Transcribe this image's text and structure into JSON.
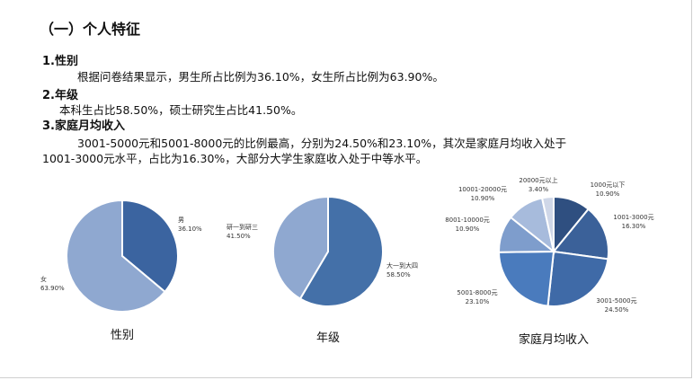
{
  "section_title": "（一）个人特征",
  "items": [
    {
      "heading": "1.性别",
      "lines": [
        "根据问卷结果显示，男生所占比例为36.10%，女生所占比例为63.90%。"
      ]
    },
    {
      "heading": "2.年级",
      "lines": [
        "本科生占比58.50%，硕士研究生占比41.50%。"
      ]
    },
    {
      "heading": "3.家庭月均收入",
      "lines": [
        "3001-5000元和5001-8000元的比例最高，分别为24.50%和23.10%，其次是家庭月均收入处于",
        "1001-3000元水平，占比为16.30%，大部分大学生家庭收入处于中等水平。"
      ]
    }
  ],
  "chart_data": [
    {
      "type": "pie",
      "title": "性别",
      "slices": [
        {
          "name": "男",
          "value": 36.1,
          "label": "36.10%",
          "color": "#3b64a0"
        },
        {
          "name": "女",
          "value": 63.9,
          "label": "63.90%",
          "color": "#8fa8d0"
        }
      ]
    },
    {
      "type": "pie",
      "title": "年级",
      "slices": [
        {
          "name": "大一到大四",
          "value": 58.5,
          "label": "58.50%",
          "color": "#4470a8"
        },
        {
          "name": "研一到研三",
          "value": 41.5,
          "label": "41.50%",
          "color": "#8fa8d0"
        }
      ]
    },
    {
      "type": "pie",
      "title": "家庭月均收入",
      "slices": [
        {
          "name": "1000元以下",
          "value": 10.9,
          "label": "10.90%",
          "color": "#2f4f80"
        },
        {
          "name": "1001-3000元",
          "value": 16.3,
          "label": "16.30%",
          "color": "#3b6199"
        },
        {
          "name": "3001-5000元",
          "value": 24.5,
          "label": "24.50%",
          "color": "#3f6aa7"
        },
        {
          "name": "5001-8000元",
          "value": 23.1,
          "label": "23.10%",
          "color": "#4a7bbd"
        },
        {
          "name": "8001-10000元",
          "value": 10.9,
          "label": "10.90%",
          "color": "#7e9dcc"
        },
        {
          "name": "10001-20000元",
          "value": 10.9,
          "label": "10.90%",
          "color": "#a7bbdc"
        },
        {
          "name": "20000元以上",
          "value": 3.4,
          "label": "3.40%",
          "color": "#cfd7e8"
        }
      ]
    }
  ]
}
